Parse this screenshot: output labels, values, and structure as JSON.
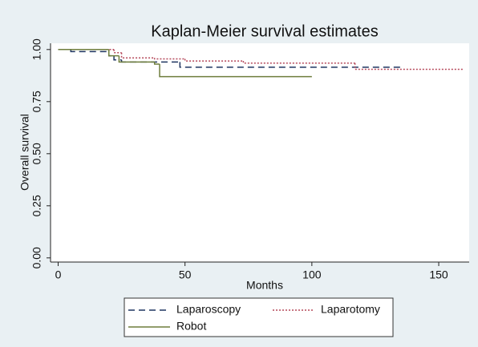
{
  "chart_data": {
    "type": "step",
    "title": "Kaplan-Meier survival estimates",
    "x_label": "Months",
    "y_label": "Overall survival",
    "xlim": [
      -3,
      162
    ],
    "xticks": [
      0,
      50,
      100,
      150
    ],
    "ylim": [
      -0.02,
      1.03
    ],
    "yticks": [
      {
        "value": 0,
        "label": "0.00"
      },
      {
        "value": 0.25,
        "label": "0.25"
      },
      {
        "value": 0.5,
        "label": "0.50"
      },
      {
        "value": 0.75,
        "label": "0.75"
      },
      {
        "value": 1,
        "label": "1.00"
      }
    ],
    "series": [
      {
        "name": "Laparoscopy",
        "color": "#1f3560",
        "dash": "8,5",
        "x": [
          0,
          5,
          20,
          22,
          25,
          48,
          135
        ],
        "values": [
          1,
          0.99,
          0.97,
          0.95,
          0.94,
          0.915,
          0.915
        ]
      },
      {
        "name": "Laparotomy",
        "color": "#b5485a",
        "dash": "2,2",
        "x": [
          0,
          22,
          25,
          38,
          50,
          73,
          117,
          160
        ],
        "values": [
          1,
          0.985,
          0.96,
          0.955,
          0.945,
          0.935,
          0.905,
          0.905
        ]
      },
      {
        "name": "Robot",
        "color": "#6e7d3c",
        "dash": "none",
        "x": [
          0,
          19,
          20,
          24,
          38,
          40,
          100
        ],
        "values": [
          1,
          1,
          0.97,
          0.94,
          0.93,
          0.87,
          0.87
        ]
      }
    ]
  }
}
